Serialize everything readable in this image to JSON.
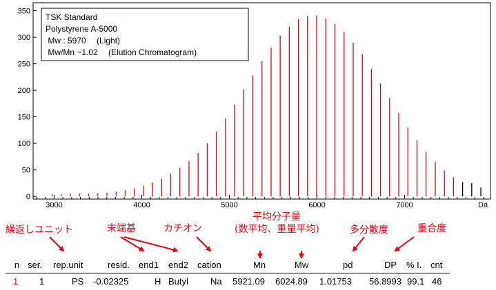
{
  "chart_data": {
    "type": "bar",
    "legend_lines": [
      "TSK Standard",
      "Polystyrene A-5000",
      " Mw : 5970 　(Light)",
      " Mw/Mn ~1.02 　(Elution Chromatogram)"
    ],
    "legend_position": "top-left",
    "xlabel": "Da",
    "xlim": [
      2760,
      7980
    ],
    "ylim": [
      -5,
      365
    ],
    "x_ticks": [
      3000,
      4000,
      5000,
      6000,
      7000
    ],
    "x_tick_labels": [
      "3000",
      "4000",
      "5000",
      "6000",
      "7000"
    ],
    "y_ticks": [
      0,
      50,
      100,
      150,
      200,
      250,
      300,
      350
    ],
    "y_tick_labels": [
      "0",
      "50",
      "100",
      "150",
      "200",
      "250",
      "300",
      "350"
    ],
    "series": [
      {
        "color": "#e60012",
        "x": [
          2978,
          3082,
          3186,
          3290,
          3394,
          3498,
          3603,
          3707,
          3811,
          3915,
          4019,
          4123,
          4227,
          4331,
          4435,
          4539,
          4643,
          4747,
          4852,
          4956,
          5060,
          5164,
          5268,
          5372,
          5476,
          5580,
          5684,
          5788,
          5892,
          5996,
          6101,
          6205,
          6309,
          6413,
          6517,
          6621,
          6725,
          6829,
          6933,
          7037,
          7141,
          7245,
          7350,
          7454,
          7558
        ],
        "values": [
          4,
          4,
          5,
          5,
          5,
          6,
          7,
          9,
          12,
          15,
          20,
          26,
          33,
          43,
          54,
          67,
          82,
          100,
          122,
          147,
          173,
          202,
          228,
          255,
          280,
          303,
          320,
          334,
          340,
          341,
          336,
          325,
          310,
          290,
          268,
          240,
          213,
          185,
          157,
          130,
          106,
          84,
          65,
          49,
          36
        ]
      },
      {
        "color": "#000000",
        "x": [
          7662,
          7766,
          7870
        ],
        "values": [
          27,
          25,
          17
        ]
      }
    ]
  },
  "annotations": {
    "repeat_unit": "繰返しユニット",
    "end_groups": "末端基",
    "cation": "カチオン",
    "avg_mw_line1": "平均分子量",
    "avg_mw_line2": "(数平均、重量平均)",
    "dispersity": "多分散度",
    "degree_polymerization": "重合度",
    "arrow_color": "#e60012"
  },
  "table": {
    "headers": [
      "n",
      "ser.",
      "rep.unit",
      "resid.",
      "end1",
      "end2",
      "cation",
      "Mn",
      "Mw",
      "pd",
      "DP",
      "% I.",
      "cnt"
    ],
    "row": [
      "1",
      "1",
      "PS",
      "-0.02325",
      "H",
      "Butyl",
      "Na",
      "5921.09",
      "6024.89",
      "1.01753",
      "56.8993",
      "99.1",
      "46"
    ]
  }
}
